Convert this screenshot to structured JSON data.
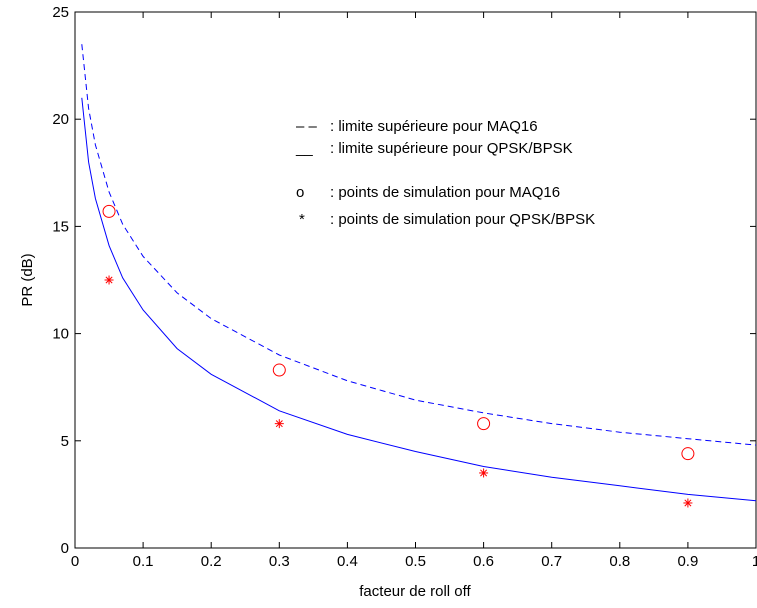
{
  "chart_data": {
    "type": "line",
    "title": "",
    "xlabel": "facteur de roll off",
    "ylabel": "PR (dB)",
    "xlim": [
      0,
      1
    ],
    "ylim": [
      0,
      25
    ],
    "x_ticks": [
      "0",
      "0.1",
      "0.2",
      "0.3",
      "0.4",
      "0.5",
      "0.6",
      "0.7",
      "0.8",
      "0.9",
      "1"
    ],
    "y_ticks": [
      "0",
      "5",
      "10",
      "15",
      "20",
      "25"
    ],
    "grid": false,
    "legend_position": "top-right",
    "colors": {
      "curves": "#0000ff",
      "points": "#ff0000"
    },
    "series": [
      {
        "name": "limite supérieure pour MAQ16",
        "kind": "line",
        "line_style": "dashed",
        "color": "#0000ff",
        "x": [
          0.01,
          0.02,
          0.03,
          0.05,
          0.07,
          0.1,
          0.15,
          0.2,
          0.3,
          0.4,
          0.5,
          0.6,
          0.7,
          0.8,
          0.9,
          1.0
        ],
        "y": [
          23.5,
          20.5,
          18.8,
          16.6,
          15.1,
          13.6,
          11.9,
          10.7,
          9.0,
          7.8,
          6.9,
          6.3,
          5.8,
          5.4,
          5.1,
          4.8
        ]
      },
      {
        "name": "limite supérieure pour QPSK/BPSK",
        "kind": "line",
        "line_style": "solid",
        "color": "#0000ff",
        "x": [
          0.01,
          0.02,
          0.03,
          0.05,
          0.07,
          0.1,
          0.15,
          0.2,
          0.3,
          0.4,
          0.5,
          0.6,
          0.7,
          0.8,
          0.9,
          1.0
        ],
        "y": [
          21.0,
          18.0,
          16.3,
          14.1,
          12.6,
          11.1,
          9.3,
          8.1,
          6.4,
          5.3,
          4.5,
          3.8,
          3.3,
          2.9,
          2.5,
          2.2
        ]
      },
      {
        "name": "points de simulation pour MAQ16",
        "kind": "scatter",
        "marker": "o",
        "color": "#ff0000",
        "x": [
          0.05,
          0.3,
          0.6,
          0.9
        ],
        "y": [
          15.7,
          8.3,
          5.8,
          4.4
        ]
      },
      {
        "name": "points de simulation pour QPSK/BPSK",
        "kind": "scatter",
        "marker": "*",
        "color": "#ff0000",
        "x": [
          0.05,
          0.3,
          0.6,
          0.9
        ],
        "y": [
          12.5,
          5.8,
          3.5,
          2.1
        ]
      }
    ],
    "legend": [
      {
        "symbol": "– –",
        "text": ": limite supérieure pour MAQ16"
      },
      {
        "symbol": "__",
        "text": ": limite supérieure pour QPSK/BPSK"
      },
      {
        "symbol": "o",
        "text": ": points de simulation pour MAQ16"
      },
      {
        "symbol": "*",
        "text": ": points de simulation pour QPSK/BPSK"
      }
    ]
  }
}
